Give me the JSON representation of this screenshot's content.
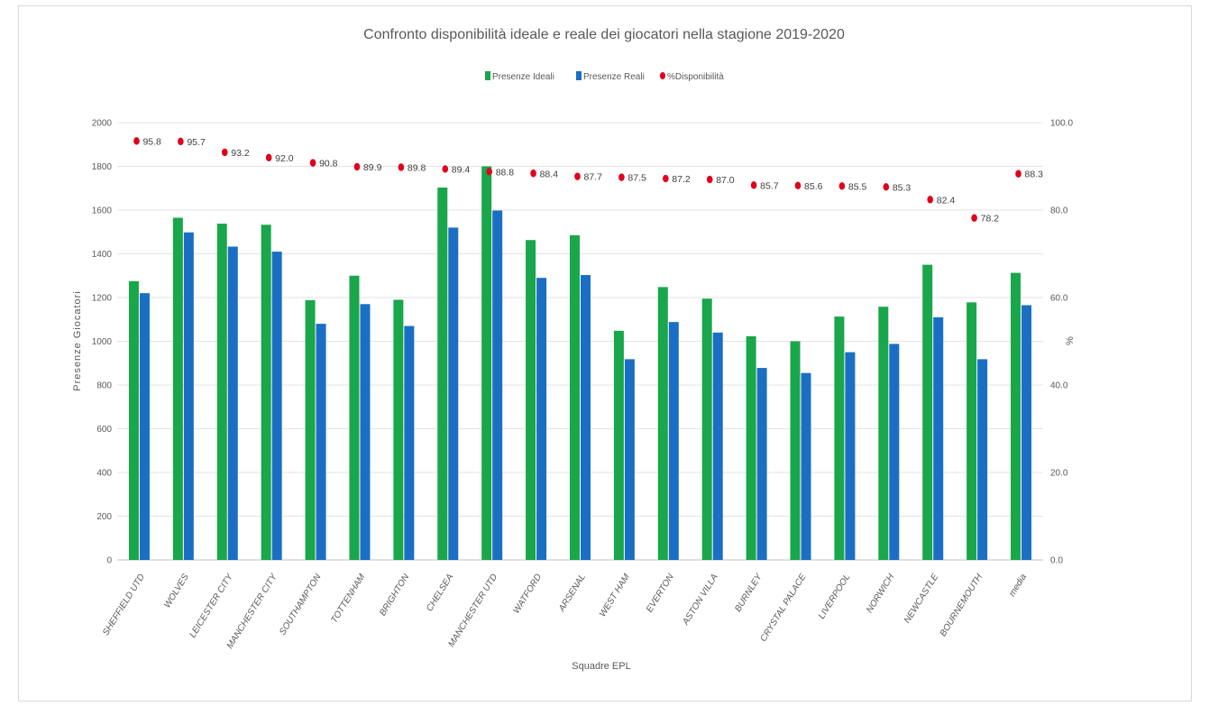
{
  "chart_data": {
    "type": "bar",
    "title": "Confronto disponibilità ideale e reale dei giocatori nella stagione 2019-2020",
    "xlabel": "Squadre  EPL",
    "ylabel": "Presenze Giocatori",
    "y2label": "%",
    "ylim": [
      0,
      2000
    ],
    "y2lim": [
      0,
      100
    ],
    "yticks": [
      "0",
      "200",
      "400",
      "600",
      "800",
      "1000",
      "1200",
      "1400",
      "1600",
      "1800",
      "2000"
    ],
    "y2ticks": [
      "0.0",
      "20.0",
      "40.0",
      "60.0",
      "80.0",
      "100.0"
    ],
    "grid": true,
    "legend_position": "top",
    "categories": [
      "SHEFFIELD UTD",
      "WOLVES",
      "LEICESTER CITY",
      "MANCHESTER CITY",
      "SOUTHAMPTON",
      "TOTTENHAM",
      "BRIGHTON",
      "CHELSEA",
      "MANCHESTER UTD",
      "WATFORD",
      "ARSENAL",
      "WEST HAM",
      "EVERTON",
      "ASTON VILLA",
      "BURNLEY",
      "CRYSTAL PALACE",
      "LIVERPOOL",
      "NORWICH",
      "NEWCASTLE",
      "BOURNEMOUTH",
      "media"
    ],
    "series": [
      {
        "name": "Presenze Ideali",
        "type": "bar",
        "axis": "left",
        "color": "#1aa64a",
        "values": [
          1275,
          1565,
          1538,
          1533,
          1188,
          1300,
          1190,
          1703,
          1800,
          1463,
          1485,
          1048,
          1248,
          1195,
          1023,
          1000,
          1113,
          1158,
          1350,
          1178,
          1313
        ]
      },
      {
        "name": "Presenze Reali",
        "type": "bar",
        "axis": "left",
        "color": "#1a6fc4",
        "values": [
          1220,
          1498,
          1433,
          1410,
          1080,
          1170,
          1070,
          1520,
          1598,
          1290,
          1303,
          918,
          1088,
          1040,
          878,
          855,
          950,
          988,
          1110,
          918,
          1165
        ]
      },
      {
        "name": "%Disponibilità",
        "type": "scatter",
        "axis": "right",
        "color": "#e0001b",
        "values": [
          95.8,
          95.7,
          93.2,
          92.0,
          90.8,
          89.9,
          89.8,
          89.4,
          88.8,
          88.4,
          87.7,
          87.5,
          87.2,
          87.0,
          85.7,
          85.6,
          85.5,
          85.3,
          82.4,
          78.2,
          88.3
        ],
        "labels": [
          "95.8",
          "95.7",
          "93.2",
          "92.0",
          "90.8",
          "89.9",
          "89.8",
          "89.4",
          "88.8",
          "88.4",
          "87.7",
          "87.5",
          "87.2",
          "87.0",
          "85.7",
          "85.6",
          "85.5",
          "85.3",
          "82.4",
          "78.2",
          "88.3"
        ]
      }
    ]
  }
}
